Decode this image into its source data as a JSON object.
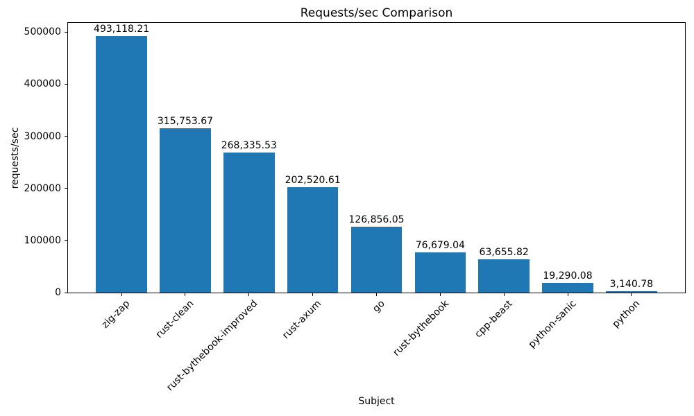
{
  "chart_data": {
    "type": "bar",
    "title": "Requests/sec Comparison",
    "xlabel": "Subject",
    "ylabel": "requests/sec",
    "categories": [
      "zig-zap",
      "rust-clean",
      "rust-bythebook-improved",
      "rust-axum",
      "go",
      "rust-bythebook",
      "cpp-beast",
      "python-sanic",
      "python"
    ],
    "values": [
      493118.21,
      315753.67,
      268335.53,
      202520.61,
      126856.05,
      76679.04,
      63655.82,
      19290.08,
      3140.78
    ],
    "value_labels": [
      "493,118.21",
      "315,753.67",
      "268,335.53",
      "202,520.61",
      "126,856.05",
      "76,679.04",
      "63,655.82",
      "19,290.08",
      "3,140.78"
    ],
    "yticks": [
      0,
      100000,
      200000,
      300000,
      400000,
      500000
    ],
    "ytick_labels": [
      "0",
      "100000",
      "200000",
      "300000",
      "400000",
      "500000"
    ],
    "ylim": [
      0,
      517774
    ],
    "bar_color": "#1f77b4",
    "text_color": "#000000",
    "grid": false,
    "legend": null,
    "x_tick_label_rotation_deg": 45
  }
}
